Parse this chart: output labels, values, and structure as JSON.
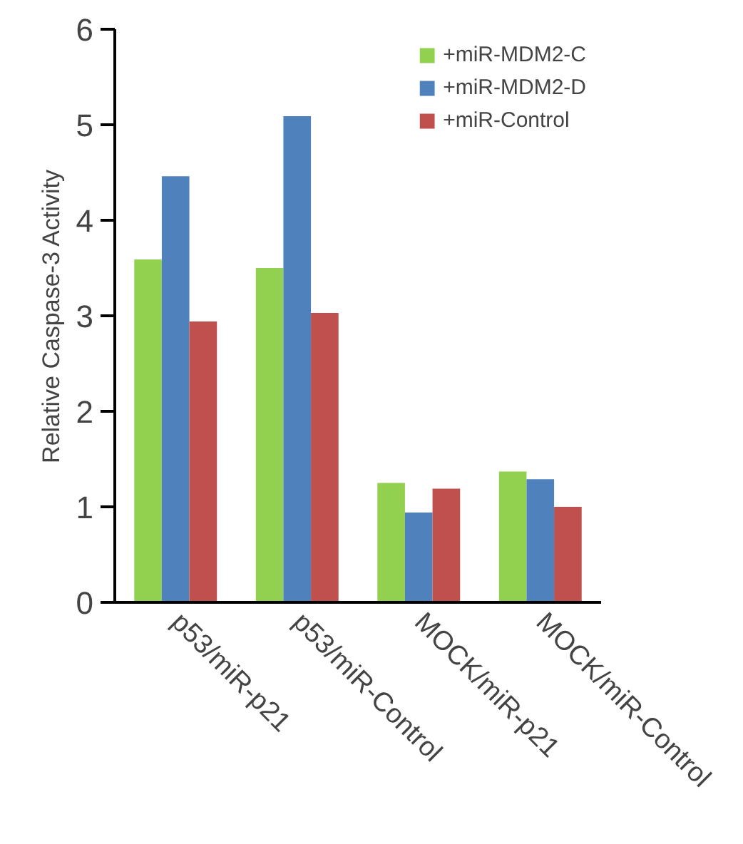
{
  "chart_data": {
    "type": "bar",
    "ylabel": "Relative Caspase-3 Activity",
    "categories": [
      "p53/miR-p21",
      "p53/miR-Control",
      "MOCK/miR-p21",
      "MOCK/miR-Control"
    ],
    "series": [
      {
        "name": "+miR-MDM2-C",
        "color": "#92d050",
        "values": [
          3.59,
          3.5,
          1.25,
          1.37
        ]
      },
      {
        "name": "+miR-MDM2-D",
        "color": "#4f81bd",
        "values": [
          4.46,
          5.09,
          0.94,
          1.29
        ]
      },
      {
        "name": "+miR-Control",
        "color": "#c0504d",
        "values": [
          2.94,
          3.03,
          1.19,
          1.0
        ]
      }
    ],
    "ylim": [
      0,
      6
    ],
    "yticks": [
      0,
      1,
      2,
      3,
      4,
      5,
      6
    ],
    "grid": false,
    "legend": "top right"
  }
}
